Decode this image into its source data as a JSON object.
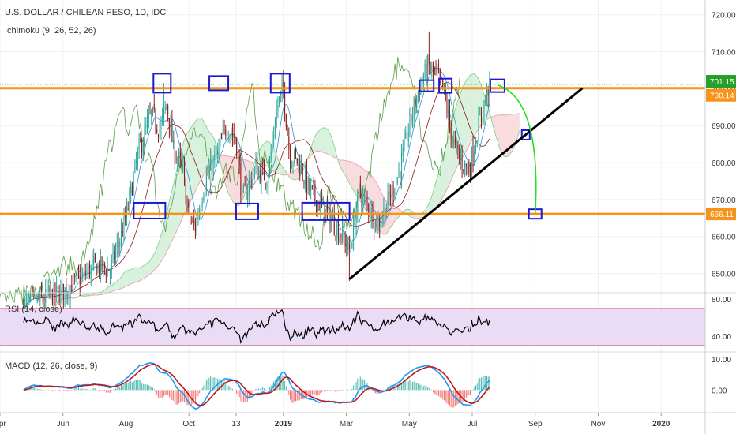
{
  "header": {
    "title": "U.S. DOLLAR / CHILEAN PESO, 1D, IDC",
    "indicator": "Ichimoku (9, 26, 52, 26)"
  },
  "rsi": {
    "label": "RSI (14, close)",
    "ticks": [
      "80.00",
      "40.00"
    ],
    "upper": 70,
    "lower": 30,
    "range": [
      24,
      86
    ]
  },
  "macd": {
    "label": "MACD (12, 26, close, 9)",
    "ticks": [
      "10.00",
      "0.00"
    ],
    "range": [
      -7,
      12
    ]
  },
  "colors": {
    "up": "#26a69a",
    "down": "#8b1a1a",
    "orange": "#f7931a",
    "box": "#1a1ad6",
    "trend": "#000000",
    "projection": "#22dd22",
    "rsi_fill": "#e9dcf7",
    "rsi_bound": "#d93b3b"
  },
  "chart_data": {
    "type": "candlestick",
    "title": "U.S. DOLLAR / CHILEAN PESO, 1D, IDC",
    "y_ticks": [
      720,
      710,
      700,
      690,
      680,
      670,
      660,
      650
    ],
    "ylim": [
      645,
      724
    ],
    "x_ticks": [
      "Apr",
      "Jun",
      "Aug",
      "Oct",
      "13",
      "2019",
      "Mar",
      "May",
      "Jul",
      "Sep",
      "Nov",
      "2020"
    ],
    "x_tick_positions": [
      0,
      2,
      4,
      6,
      7.5,
      9,
      11,
      13,
      15,
      17,
      19,
      21
    ],
    "x_domain": [
      0,
      22.4
    ],
    "price_labels": [
      "701.15",
      "700.14",
      "666.11"
    ],
    "horizontal_levels": [
      700.14,
      666.11
    ],
    "reference_line": 701.15,
    "anchors": [
      [
        0.0,
        640
      ],
      [
        1.0,
        642
      ],
      [
        2.0,
        645
      ],
      [
        3.0,
        652
      ],
      [
        3.5,
        651
      ],
      [
        4.0,
        665
      ],
      [
        4.4,
        683
      ],
      [
        4.8,
        693
      ],
      [
        5.1,
        689
      ],
      [
        5.3,
        696
      ],
      [
        5.5,
        684
      ],
      [
        5.8,
        678
      ],
      [
        6.0,
        665
      ],
      [
        6.2,
        662
      ],
      [
        6.5,
        675
      ],
      [
        6.9,
        682
      ],
      [
        7.2,
        690
      ],
      [
        7.5,
        686
      ],
      [
        7.7,
        670
      ],
      [
        8.1,
        678
      ],
      [
        8.5,
        676
      ],
      [
        8.8,
        695
      ],
      [
        9.0,
        700
      ],
      [
        9.2,
        682
      ],
      [
        9.5,
        680
      ],
      [
        9.8,
        673
      ],
      [
        10.2,
        668
      ],
      [
        10.5,
        665
      ],
      [
        10.9,
        660
      ],
      [
        11.1,
        656
      ],
      [
        11.4,
        672
      ],
      [
        11.7,
        668
      ],
      [
        12.0,
        663
      ],
      [
        12.3,
        669
      ],
      [
        12.7,
        678
      ],
      [
        13.0,
        690
      ],
      [
        13.3,
        700
      ],
      [
        13.6,
        706
      ],
      [
        13.9,
        703
      ],
      [
        14.1,
        699
      ],
      [
        14.4,
        685
      ],
      [
        14.6,
        681
      ],
      [
        14.9,
        678
      ],
      [
        15.2,
        690
      ],
      [
        15.5,
        700
      ]
    ],
    "markers": [
      [
        5.15,
        701.5
      ],
      [
        6.95,
        701.5
      ],
      [
        8.9,
        701.5
      ],
      [
        4.75,
        667
      ],
      [
        7.85,
        666.8
      ],
      [
        10.35,
        666.8
      ],
      [
        13.55,
        700.8
      ],
      [
        14.15,
        700.8
      ],
      [
        15.8,
        700.8
      ],
      [
        16.7,
        687.5
      ],
      [
        17.0,
        666.1
      ]
    ],
    "trendline": [
      [
        11.1,
        648.5
      ],
      [
        18.5,
        700.14
      ]
    ],
    "projection": [
      [
        15.8,
        701
      ],
      [
        17.0,
        666.1
      ]
    ]
  }
}
